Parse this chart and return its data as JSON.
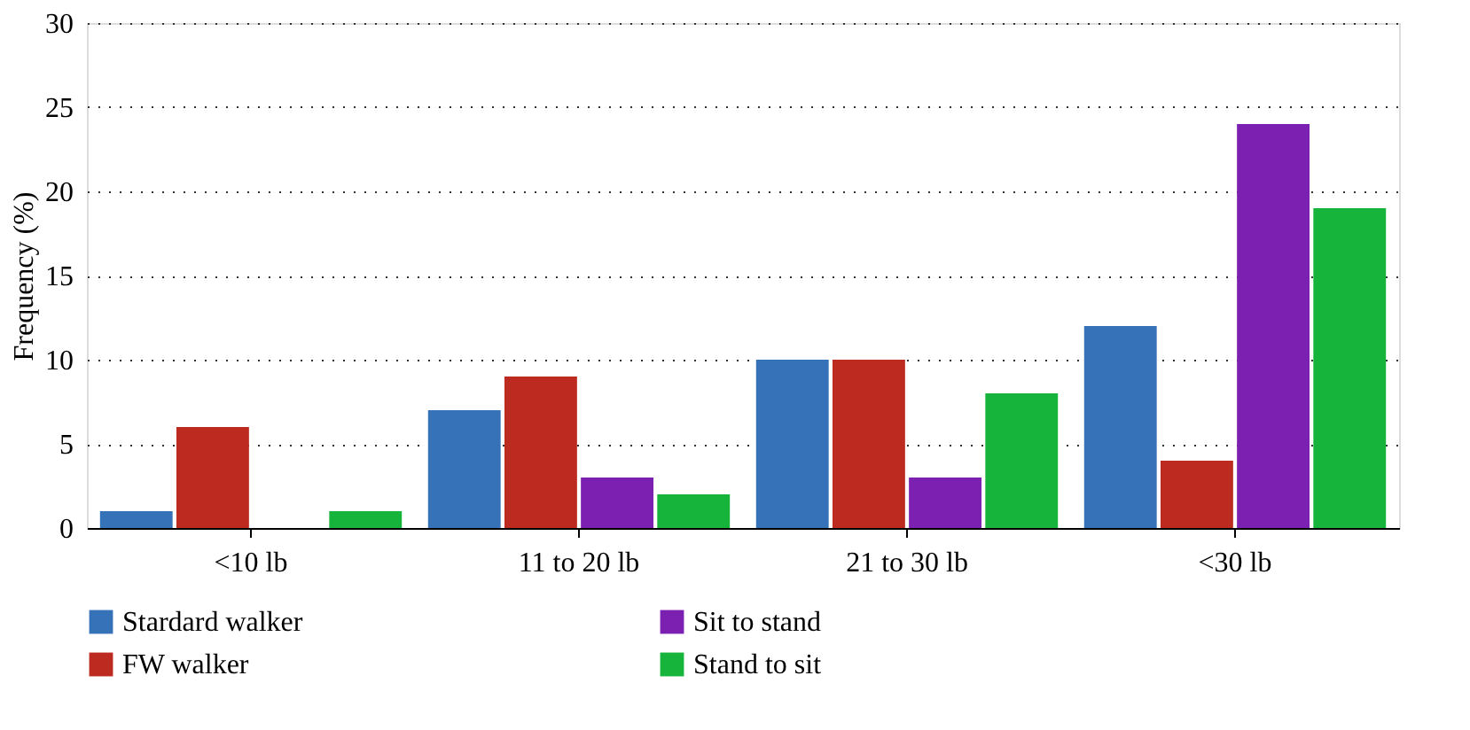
{
  "chart_data": {
    "type": "bar",
    "ylabel": "Frequency (%)",
    "categories": [
      "<10 lb",
      "11 to 20 lb",
      "21 to 30 lb",
      "<30 lb"
    ],
    "series": [
      {
        "name": "Stardard walker",
        "color": "#3572b7",
        "values": [
          1,
          7,
          10,
          12
        ]
      },
      {
        "name": "FW walker",
        "color": "#bc2a20",
        "values": [
          6,
          9,
          10,
          4
        ]
      },
      {
        "name": "Sit to stand",
        "color": "#7b20b0",
        "values": [
          0,
          3,
          3,
          24
        ]
      },
      {
        "name": "Stand to sit",
        "color": "#16b43a",
        "values": [
          1,
          2,
          8,
          19
        ]
      }
    ],
    "ylim": [
      0,
      30
    ],
    "yticks": [
      0,
      5,
      10,
      15,
      20,
      25,
      30
    ],
    "grid": "y",
    "legend": "bottom"
  }
}
